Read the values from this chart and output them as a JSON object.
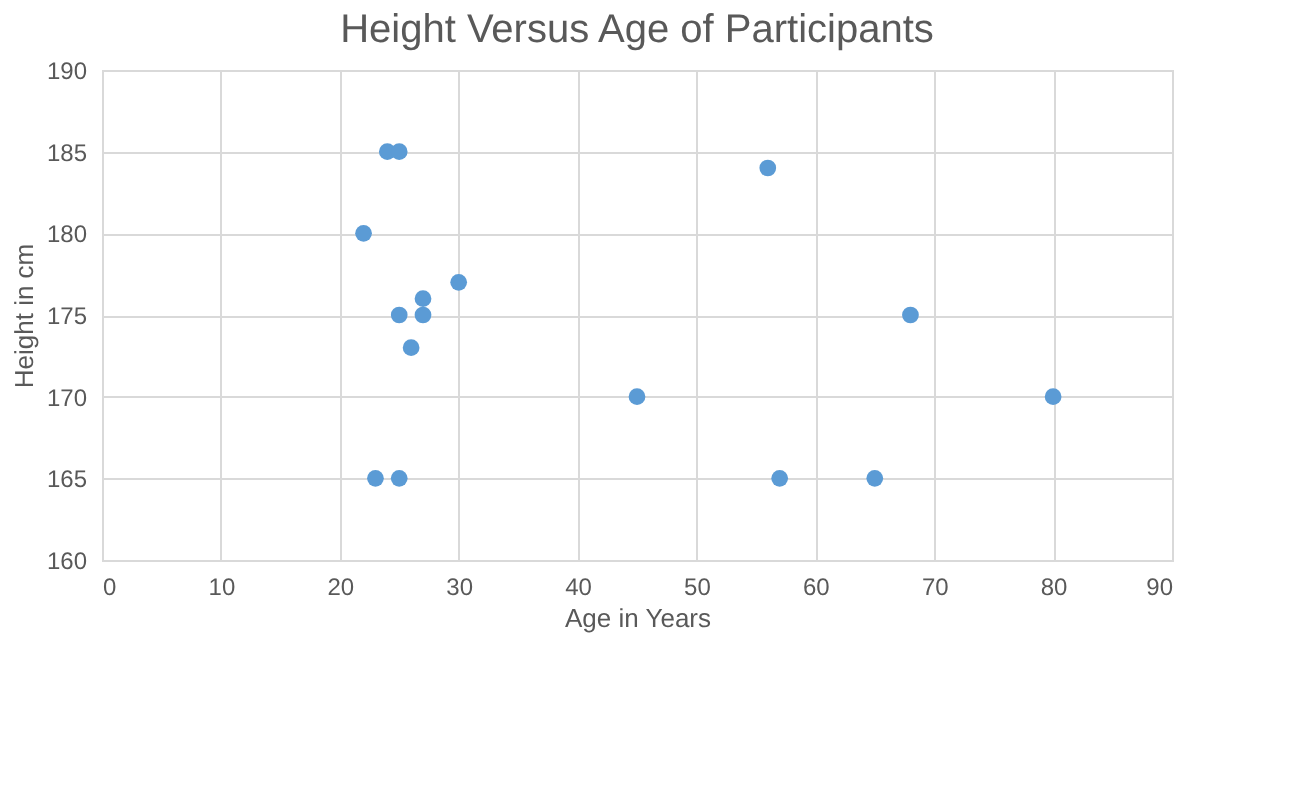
{
  "chart_data": {
    "type": "scatter",
    "title": "Height Versus Age of Participants",
    "xlabel": "Age  in Years",
    "ylabel": "Height in cm",
    "x": [
      24,
      25,
      22,
      56,
      25,
      27,
      27,
      30,
      26,
      45,
      80,
      68,
      23,
      25,
      57,
      65
    ],
    "series": [
      {
        "color": "#5b9bd5",
        "values": [
          185,
          185,
          180,
          184,
          175,
          175,
          176,
          177,
          173,
          170,
          170,
          175,
          165,
          165,
          165,
          165
        ]
      }
    ],
    "xlim": [
      0,
      90
    ],
    "xticks": [
      0,
      10,
      20,
      30,
      40,
      50,
      60,
      70,
      80,
      90
    ],
    "ylim": [
      160,
      190
    ],
    "yticks": [
      160,
      165,
      170,
      175,
      180,
      185,
      190
    ],
    "grid": true,
    "marker": "circle"
  }
}
